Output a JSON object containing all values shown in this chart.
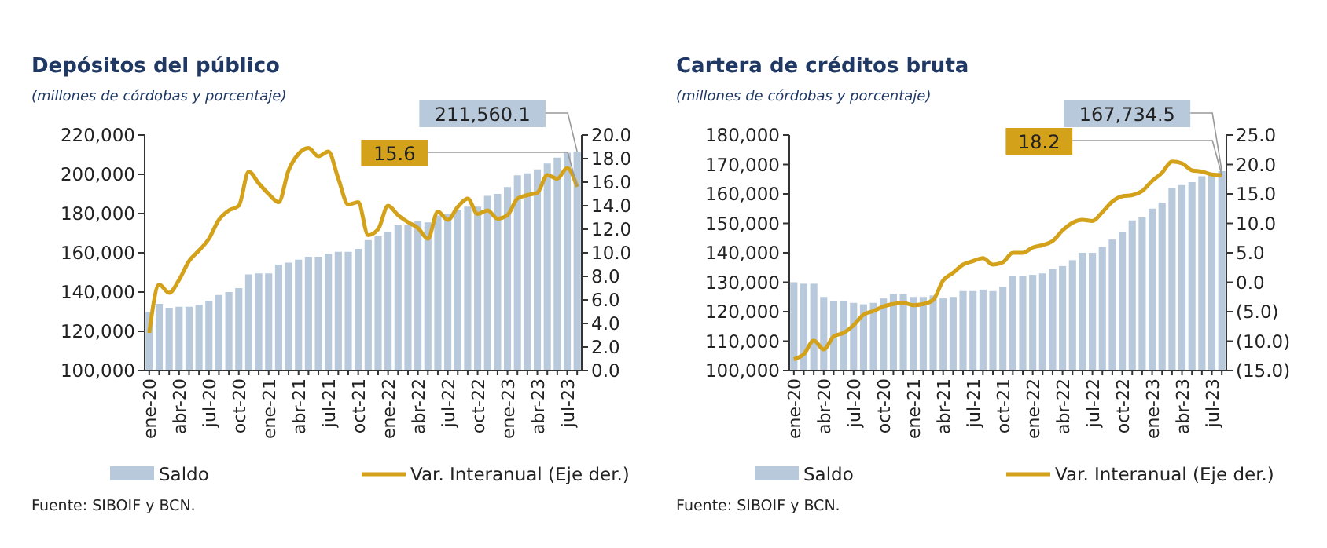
{
  "chart_data": [
    {
      "type": "bar",
      "title": "Depósitos del público",
      "subtitle": "(millones de córdobas y porcentaje)",
      "categories": [
        "ene-20",
        null,
        null,
        "abr-20",
        null,
        null,
        "jul-20",
        null,
        null,
        "oct-20",
        null,
        null,
        "ene-21",
        null,
        null,
        "abr-21",
        null,
        null,
        "jul-21",
        null,
        null,
        "oct-21",
        null,
        null,
        "ene-22",
        null,
        null,
        "abr-22",
        null,
        null,
        "jul-22",
        null,
        null,
        "oct-22",
        null,
        null,
        "ene-23",
        null,
        null,
        "abr-23",
        null,
        null,
        "jul-23",
        null
      ],
      "series": [
        {
          "name": "Saldo",
          "color": "#b7c9db",
          "values": [
            130000,
            134000,
            132000,
            132500,
            132500,
            133500,
            135500,
            138500,
            140000,
            142000,
            149000,
            149500,
            149500,
            154000,
            155000,
            156500,
            158000,
            158000,
            159500,
            160500,
            160500,
            162000,
            166500,
            168500,
            170500,
            174000,
            174000,
            176000,
            175500,
            179000,
            180000,
            182000,
            183500,
            183500,
            189000,
            190000,
            193500,
            199500,
            200500,
            202500,
            205500,
            208500,
            211000,
            211560.1
          ],
          "value_labels": [
            null,
            null,
            null,
            null,
            null,
            null,
            null,
            null,
            null,
            null,
            null,
            null,
            null,
            null,
            null,
            null,
            null,
            null,
            null,
            null,
            null,
            null,
            null,
            null,
            null,
            null,
            null,
            null,
            null,
            null,
            null,
            null,
            null,
            null,
            null,
            null,
            null,
            null,
            null,
            null,
            null,
            null,
            null,
            "211,560.1"
          ]
        },
        {
          "name": "Var. Interanual (Eje der.)",
          "type": "line",
          "axis": "y2",
          "color": "#d4a21a",
          "values": [
            3.2,
            7.3,
            6.6,
            7.7,
            9.3,
            10.2,
            11.2,
            12.8,
            13.6,
            14.0,
            16.9,
            15.9,
            15.0,
            14.3,
            17.0,
            18.4,
            18.9,
            18.2,
            18.6,
            16.3,
            14.1,
            14.3,
            11.5,
            12.0,
            14.0,
            13.2,
            12.6,
            12.1,
            11.2,
            13.5,
            12.8,
            13.9,
            14.6,
            13.3,
            13.6,
            12.9,
            13.2,
            14.6,
            14.9,
            15.1,
            16.6,
            16.3,
            17.2,
            15.6
          ],
          "value_labels": [
            null,
            null,
            null,
            null,
            null,
            null,
            null,
            null,
            null,
            null,
            null,
            null,
            null,
            null,
            null,
            null,
            null,
            null,
            null,
            null,
            null,
            null,
            null,
            null,
            null,
            null,
            null,
            null,
            null,
            null,
            null,
            null,
            null,
            null,
            null,
            null,
            null,
            null,
            null,
            null,
            null,
            null,
            null,
            "15.6"
          ]
        }
      ],
      "ylim": [
        100000,
        220000
      ],
      "yticks": [
        {
          "value": 100000,
          "label": "100,000"
        },
        {
          "value": 120000,
          "label": "120,000"
        },
        {
          "value": 140000,
          "label": "140,000"
        },
        {
          "value": 160000,
          "label": "160,000"
        },
        {
          "value": 180000,
          "label": "180,000"
        },
        {
          "value": 200000,
          "label": "200,000"
        },
        {
          "value": 220000,
          "label": "220,000"
        }
      ],
      "y2lim": [
        0,
        20
      ],
      "y2ticks": [
        {
          "value": 0,
          "label": "0.0"
        },
        {
          "value": 2,
          "label": "2.0"
        },
        {
          "value": 4,
          "label": "4.0"
        },
        {
          "value": 6,
          "label": "6.0"
        },
        {
          "value": 8,
          "label": "8.0"
        },
        {
          "value": 10,
          "label": "10.0"
        },
        {
          "value": 12,
          "label": "12.0"
        },
        {
          "value": 14,
          "label": "14.0"
        },
        {
          "value": 16,
          "label": "16.0"
        },
        {
          "value": 18,
          "label": "18.0"
        },
        {
          "value": 20,
          "label": "20.0"
        }
      ],
      "legend": "bottom",
      "marker": "none",
      "grid": false,
      "annotations": [
        "Fuente: SIBOIF y BCN."
      ]
    },
    {
      "type": "bar",
      "title": "Cartera de créditos bruta",
      "subtitle": "(millones de córdobas y porcentaje)",
      "categories": [
        "ene-20",
        null,
        null,
        "abr-20",
        null,
        null,
        "jul-20",
        null,
        null,
        "oct-20",
        null,
        null,
        "ene-21",
        null,
        null,
        "abr-21",
        null,
        null,
        "jul-21",
        null,
        null,
        "oct-21",
        null,
        null,
        "ene-22",
        null,
        null,
        "abr-22",
        null,
        null,
        "jul-22",
        null,
        null,
        "oct-22",
        null,
        null,
        "ene-23",
        null,
        null,
        "abr-23",
        null,
        null,
        "jul-23",
        null
      ],
      "series": [
        {
          "name": "Saldo",
          "color": "#b7c9db",
          "values": [
            130000,
            129500,
            129500,
            125000,
            123500,
            123500,
            123000,
            122500,
            123000,
            124500,
            126000,
            126000,
            125000,
            125000,
            125500,
            124500,
            125000,
            127000,
            127000,
            127500,
            127000,
            128500,
            132000,
            132000,
            132500,
            133000,
            134500,
            135500,
            137500,
            140000,
            140000,
            142000,
            144500,
            147000,
            151000,
            152000,
            155000,
            157000,
            162000,
            163000,
            164000,
            166000,
            167000,
            167734.5
          ],
          "value_labels": [
            null,
            null,
            null,
            null,
            null,
            null,
            null,
            null,
            null,
            null,
            null,
            null,
            null,
            null,
            null,
            null,
            null,
            null,
            null,
            null,
            null,
            null,
            null,
            null,
            null,
            null,
            null,
            null,
            null,
            null,
            null,
            null,
            null,
            null,
            null,
            null,
            null,
            null,
            null,
            null,
            null,
            null,
            null,
            "167,734.5"
          ]
        },
        {
          "name": "Var. Interanual (Eje der.)",
          "type": "line",
          "axis": "y2",
          "color": "#d4a21a",
          "values": [
            -13.1,
            -12.2,
            -9.9,
            -11.4,
            -9.2,
            -8.6,
            -7.3,
            -5.5,
            -4.9,
            -4.1,
            -3.7,
            -3.5,
            -3.9,
            -3.7,
            -3.0,
            0.3,
            1.6,
            3.0,
            3.6,
            4.1,
            3.0,
            3.4,
            5.0,
            5.0,
            5.9,
            6.3,
            7.0,
            8.8,
            10.1,
            10.6,
            10.4,
            11.9,
            13.7,
            14.6,
            14.8,
            15.5,
            17.2,
            18.6,
            20.5,
            20.2,
            19.0,
            18.8,
            18.3,
            18.2
          ],
          "value_labels": [
            null,
            null,
            null,
            null,
            null,
            null,
            null,
            null,
            null,
            null,
            null,
            null,
            null,
            null,
            null,
            null,
            null,
            null,
            null,
            null,
            null,
            null,
            null,
            null,
            null,
            null,
            null,
            null,
            null,
            null,
            null,
            null,
            null,
            null,
            null,
            null,
            null,
            null,
            null,
            null,
            null,
            null,
            null,
            "18.2"
          ]
        }
      ],
      "ylim": [
        100000,
        180000
      ],
      "yticks": [
        {
          "value": 100000,
          "label": "100,000"
        },
        {
          "value": 110000,
          "label": "110,000"
        },
        {
          "value": 120000,
          "label": "120,000"
        },
        {
          "value": 130000,
          "label": "130,000"
        },
        {
          "value": 140000,
          "label": "140,000"
        },
        {
          "value": 150000,
          "label": "150,000"
        },
        {
          "value": 160000,
          "label": "160,000"
        },
        {
          "value": 170000,
          "label": "170,000"
        },
        {
          "value": 180000,
          "label": "180,000"
        }
      ],
      "y2lim": [
        -15,
        25
      ],
      "y2ticks": [
        {
          "value": -15,
          "label": "(15.0)"
        },
        {
          "value": -10,
          "label": "(10.0)"
        },
        {
          "value": -5,
          "label": "(5.0)"
        },
        {
          "value": 0,
          "label": "0.0"
        },
        {
          "value": 5,
          "label": "5.0"
        },
        {
          "value": 10,
          "label": "10.0"
        },
        {
          "value": 15,
          "label": "15.0"
        },
        {
          "value": 20,
          "label": "20.0"
        },
        {
          "value": 25,
          "label": "25.0"
        }
      ],
      "legend": "bottom",
      "marker": "none",
      "grid": false,
      "annotations": [
        "Fuente: SIBOIF y BCN."
      ]
    }
  ]
}
